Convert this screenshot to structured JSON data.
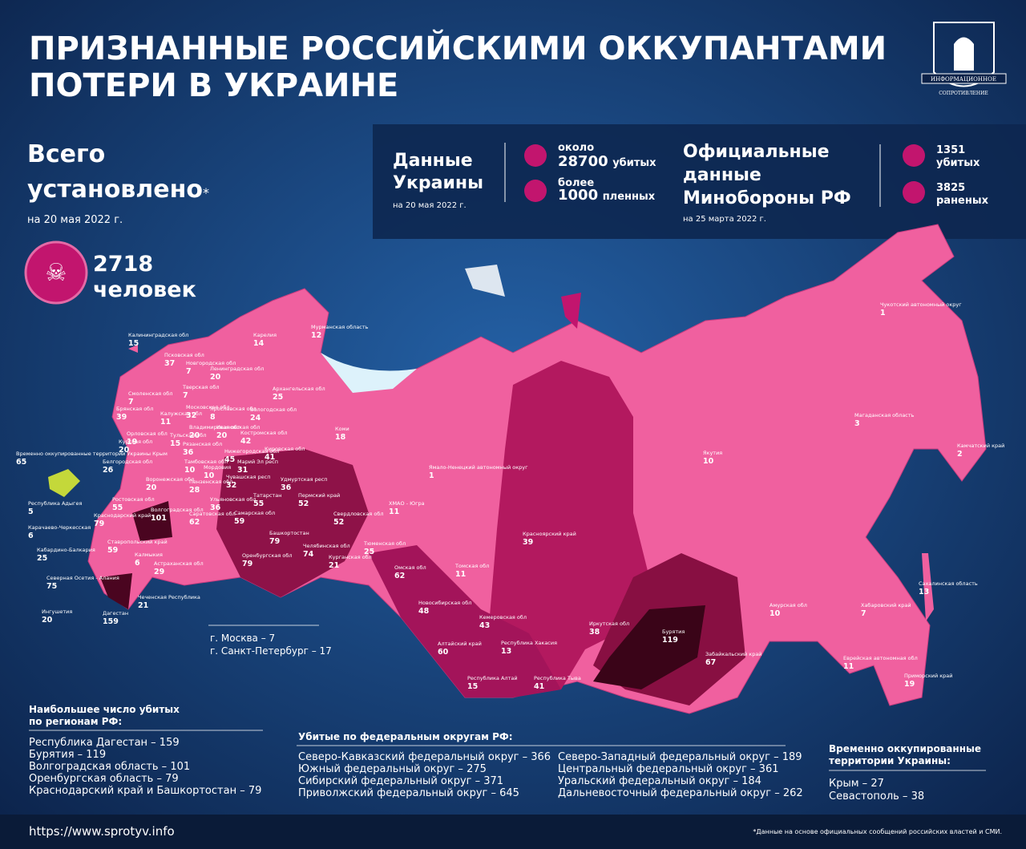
{
  "header": {
    "title_line1": "ПРИЗНАННЫЕ РОССИЙСКИМИ ОККУПАНТАМИ",
    "title_line2": "ПОТЕРИ В УКРАИНЕ",
    "logo_top": "ИНФОРМАЦИОННОЕ",
    "logo_bottom": "СОПРОТИВЛЕНИЕ"
  },
  "total": {
    "line1": "Всего",
    "line2": "установлено",
    "asterisk": "*",
    "date": "на 20 мая 2022 г.",
    "count": "2718",
    "unit": "человек"
  },
  "ukraine": {
    "title_line1": "Данные",
    "title_line2": "Украины",
    "date": "на 20 мая 2022 г.",
    "killed_prefix": "около",
    "killed": "28700",
    "killed_unit": "убитых",
    "captured_prefix": "более",
    "captured": "1000",
    "captured_unit": "пленных"
  },
  "russia": {
    "title_line1": "Официальные",
    "title_line2": "данные",
    "title_line3": "Минобороны РФ",
    "date": "на 25 марта 2022 г.",
    "killed": "1351",
    "killed_unit": "убитых",
    "wounded": "3825",
    "wounded_unit": "раненых"
  },
  "regions": [
    {
      "name": "Калининградская обл",
      "value": "15"
    },
    {
      "name": "Псковская обл",
      "value": "37"
    },
    {
      "name": "Новгородская обл",
      "value": "7"
    },
    {
      "name": "Ленинградская обл",
      "value": "20"
    },
    {
      "name": "Карелия",
      "value": "14"
    },
    {
      "name": "Мурманская область",
      "value": "12"
    },
    {
      "name": "Архангельская обл",
      "value": "25"
    },
    {
      "name": "Смоленская обл",
      "value": "7"
    },
    {
      "name": "Тверская обл",
      "value": "7"
    },
    {
      "name": "Вологодская обл",
      "value": "24"
    },
    {
      "name": "Брянская обл",
      "value": "39"
    },
    {
      "name": "Калужская обл",
      "value": "11"
    },
    {
      "name": "Московская обл",
      "value": "32"
    },
    {
      "name": "Ярославская обл",
      "value": "8"
    },
    {
      "name": "Костромская обл",
      "value": "42"
    },
    {
      "name": "Орловская обл",
      "value": "19"
    },
    {
      "name": "Тульская обл",
      "value": "15"
    },
    {
      "name": "Владимирская обл",
      "value": "20"
    },
    {
      "name": "Ивановская обл",
      "value": "20"
    },
    {
      "name": "Курская обл",
      "value": "20"
    },
    {
      "name": "Рязанская обл",
      "value": "36"
    },
    {
      "name": "Нижегородская обл",
      "value": "45"
    },
    {
      "name": "Белгородская обл",
      "value": "26"
    },
    {
      "name": "Тамбовская обл",
      "value": "10"
    },
    {
      "name": "Воронежская обл",
      "value": "20"
    },
    {
      "name": "Пензенская обл",
      "value": "28"
    },
    {
      "name": "Мордовия",
      "value": "10"
    },
    {
      "name": "Марий Эл респ",
      "value": "31"
    },
    {
      "name": "Чувашская респ",
      "value": "32"
    },
    {
      "name": "Кировская обл",
      "value": "41"
    },
    {
      "name": "Удмуртская респ",
      "value": "36"
    },
    {
      "name": "Коми",
      "value": "18"
    },
    {
      "name": "Ульяновская обл",
      "value": "36"
    },
    {
      "name": "Татарстан",
      "value": "55"
    },
    {
      "name": "Пермский край",
      "value": "52"
    },
    {
      "name": "Свердловская обл",
      "value": "52"
    },
    {
      "name": "Ростовская обл",
      "value": "55"
    },
    {
      "name": "Волгоградская обл",
      "value": "101"
    },
    {
      "name": "Саратовская обл",
      "value": "62"
    },
    {
      "name": "Самарская обл",
      "value": "59"
    },
    {
      "name": "Краснодарский край",
      "value": "79"
    },
    {
      "name": "Башкортостан",
      "value": "79"
    },
    {
      "name": "Ставропольский край",
      "value": "59"
    },
    {
      "name": "Калмыкия",
      "value": "6"
    },
    {
      "name": "Астраханская обл",
      "value": "29"
    },
    {
      "name": "Оренбургская обл",
      "value": "79"
    },
    {
      "name": "Челябинская обл",
      "value": "74"
    },
    {
      "name": "Курганская обл",
      "value": "21"
    },
    {
      "name": "Тюменская обл",
      "value": "25"
    },
    {
      "name": "ХМАО - Югра",
      "value": "11"
    },
    {
      "name": "Ямало-Ненецкий автономный округ",
      "value": "1"
    },
    {
      "name": "Омская обл",
      "value": "62"
    },
    {
      "name": "Томская обл",
      "value": "11"
    },
    {
      "name": "Новосибирская обл",
      "value": "48"
    },
    {
      "name": "Кемеровская обл",
      "value": "43"
    },
    {
      "name": "Алтайский край",
      "value": "60"
    },
    {
      "name": "Республика Хакасия",
      "value": "13"
    },
    {
      "name": "Республика Алтай",
      "value": "15"
    },
    {
      "name": "Республика Тыва",
      "value": "41"
    },
    {
      "name": "Красноярский край",
      "value": "39"
    },
    {
      "name": "Иркутская обл",
      "value": "38"
    },
    {
      "name": "Бурятия",
      "value": "119"
    },
    {
      "name": "Забайкальский край",
      "value": "67"
    },
    {
      "name": "Якутия",
      "value": "10"
    },
    {
      "name": "Магаданская область",
      "value": "3"
    },
    {
      "name": "Чукотский автономный округ",
      "value": "1"
    },
    {
      "name": "Камчатский край",
      "value": "2"
    },
    {
      "name": "Амурская обл",
      "value": "10"
    },
    {
      "name": "Хабаровский край",
      "value": "7"
    },
    {
      "name": "Еврейская автономная обл",
      "value": "11"
    },
    {
      "name": "Сахалинская область",
      "value": "13"
    },
    {
      "name": "Приморский край",
      "value": "19"
    },
    {
      "name": "Временно оккупированные территории Украины Крым",
      "value": "65"
    },
    {
      "name": "Республика Адыгея",
      "value": "5"
    },
    {
      "name": "Карачаево-Черкесская",
      "value": "6"
    },
    {
      "name": "Кабардино-Балкария",
      "value": "25"
    },
    {
      "name": "Северная Осетия - Алания",
      "value": "75"
    },
    {
      "name": "Ингушетия",
      "value": "20"
    },
    {
      "name": "Дагестан",
      "value": "159"
    },
    {
      "name": "Чеченская Республика",
      "value": "21"
    }
  ],
  "cities": [
    "г. Москва – 7",
    "г. Санкт-Петербург – 17"
  ],
  "top_regions": {
    "title_line1": "Наибольшее число убитых",
    "title_line2": "по регионам РФ:",
    "items": [
      "Республика Дагестан – 159",
      "Бурятия – 119",
      "Волгоградская область – 101",
      "Оренбургская область – 79",
      "Краснодарский край и Башкортостан – 79"
    ]
  },
  "districts": {
    "title": "Убитые по федеральным округам РФ:",
    "left": [
      "Северо-Кавказский федеральный округ – 366",
      "Южный федеральный округ – 275",
      "Сибирский федеральный округ – 371",
      "Приволжский федеральный округ – 645"
    ],
    "right": [
      "Северо-Западный федеральный округ – 189",
      "Центральный федеральный округ – 361",
      "Уральский федеральный округ – 184",
      "Дальневосточный федеральный округ – 262"
    ]
  },
  "occupied": {
    "title_line1": "Временно оккупированные",
    "title_line2": "территории Украины:",
    "items": [
      "Крым – 27",
      "Севастополь – 38"
    ]
  },
  "footer": {
    "url": "https://www.sprotyv.info",
    "note": "*Данные на основе официальных сообщений российских властей и СМИ."
  }
}
